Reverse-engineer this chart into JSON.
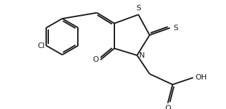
{
  "bg_color": "#ffffff",
  "line_color": "#1a1a1a",
  "line_width": 1.4,
  "figsize": [
    3.28,
    1.59
  ],
  "dpi": 100,
  "xlim": [
    -3.8,
    3.9
  ],
  "ylim": [
    -2.5,
    1.6
  ]
}
